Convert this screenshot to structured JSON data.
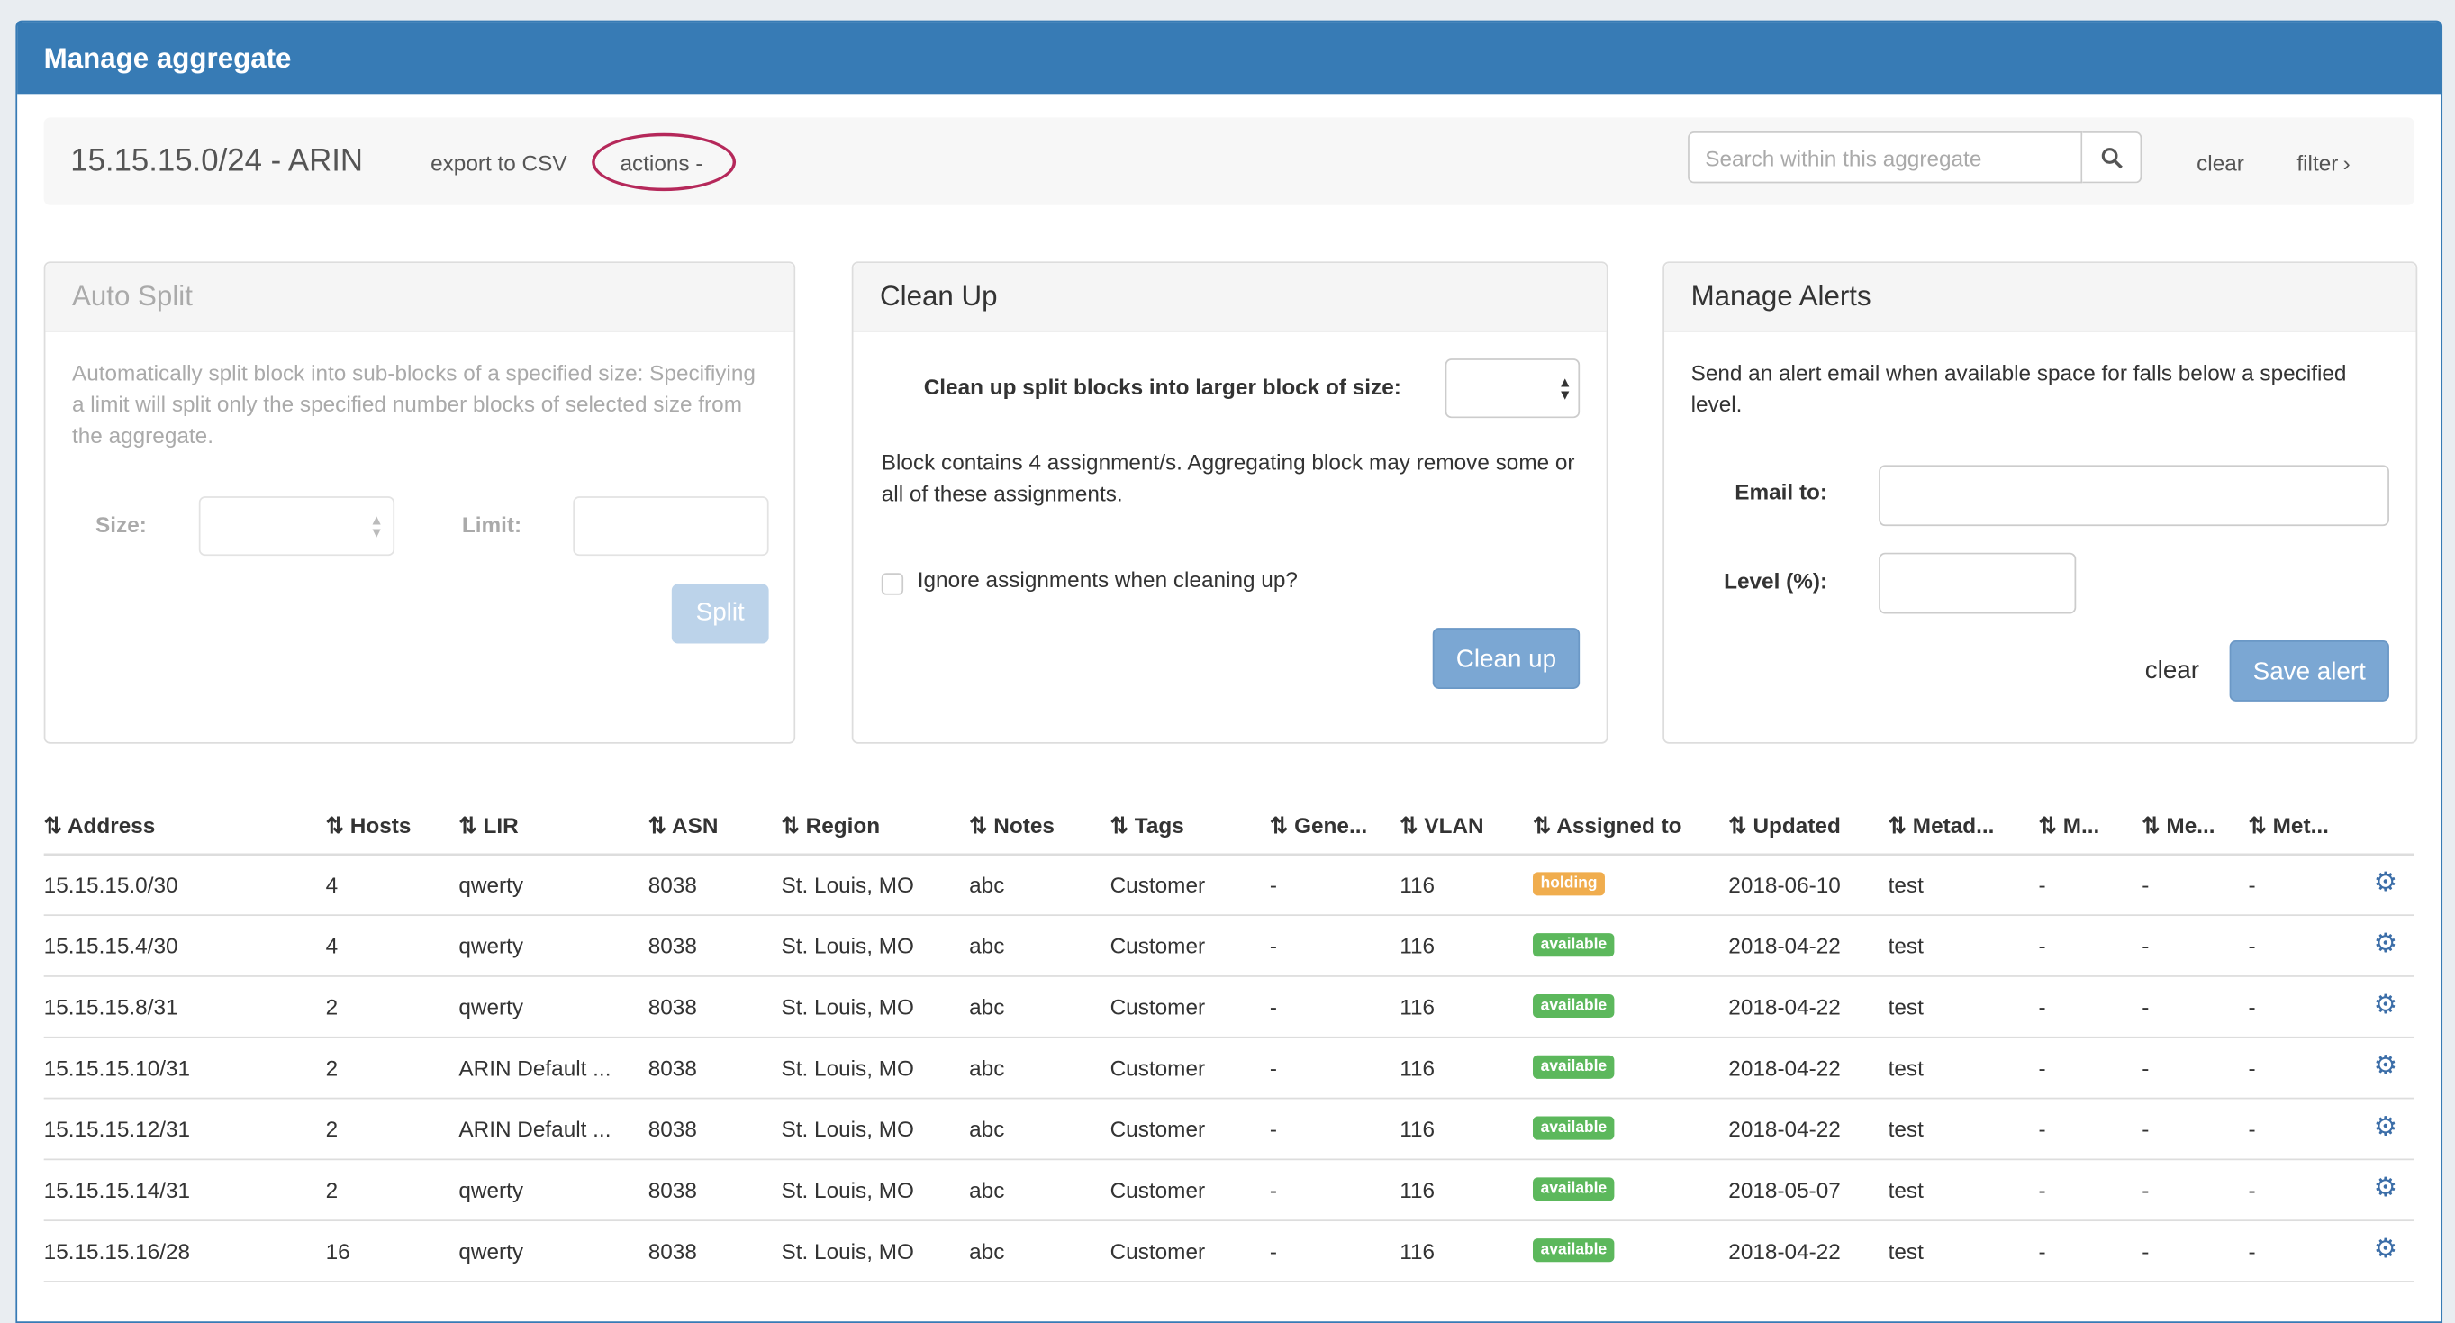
{
  "panel": {
    "title": "Manage aggregate"
  },
  "toolbar": {
    "aggregate": "15.15.15.0/24 - ARIN",
    "export": "export to CSV",
    "actions": "actions -",
    "search_placeholder": "Search within this aggregate",
    "clear": "clear",
    "filter": "filter"
  },
  "auto_split": {
    "title": "Auto Split",
    "description": "Automatically split block into sub-blocks of a specified size: Specifiying a limit will split only the specified number blocks of selected size from the aggregate.",
    "size_label": "Size:",
    "limit_label": "Limit:",
    "button": "Split"
  },
  "clean_up": {
    "title": "Clean Up",
    "size_label": "Clean up split blocks into larger block of size:",
    "note": "Block contains 4 assignment/s. Aggregating block may remove some or all of these assignments.",
    "checkbox_label": "Ignore assignments when cleaning up?",
    "checked": false,
    "button": "Clean up"
  },
  "alerts": {
    "title": "Manage Alerts",
    "description": "Send an alert email when available space for falls below a specified level.",
    "email_label": "Email to:",
    "level_label": "Level (%):",
    "clear": "clear",
    "button": "Save alert"
  },
  "colors": {
    "header": "#377bb5",
    "holding": "#f0ad4e",
    "available": "#5cb85c",
    "highlight": "#b5285a"
  },
  "table": {
    "columns": [
      "Address",
      "Hosts",
      "LIR",
      "ASN",
      "Region",
      "Notes",
      "Tags",
      "Gene...",
      "VLAN",
      "Assigned to",
      "Updated",
      "Metad...",
      "M...",
      "Me...",
      "Met..."
    ],
    "rows": [
      [
        "15.15.15.0/30",
        "4",
        "qwerty",
        "8038",
        "St. Louis, MO",
        "abc",
        "Customer",
        "-",
        "116",
        "holding",
        "2018-06-10",
        "test",
        "-",
        "-",
        "-"
      ],
      [
        "15.15.15.4/30",
        "4",
        "qwerty",
        "8038",
        "St. Louis, MO",
        "abc",
        "Customer",
        "-",
        "116",
        "available",
        "2018-04-22",
        "test",
        "-",
        "-",
        "-"
      ],
      [
        "15.15.15.8/31",
        "2",
        "qwerty",
        "8038",
        "St. Louis, MO",
        "abc",
        "Customer",
        "-",
        "116",
        "available",
        "2018-04-22",
        "test",
        "-",
        "-",
        "-"
      ],
      [
        "15.15.15.10/31",
        "2",
        "ARIN Default ...",
        "8038",
        "St. Louis, MO",
        "abc",
        "Customer",
        "-",
        "116",
        "available",
        "2018-04-22",
        "test",
        "-",
        "-",
        "-"
      ],
      [
        "15.15.15.12/31",
        "2",
        "ARIN Default ...",
        "8038",
        "St. Louis, MO",
        "abc",
        "Customer",
        "-",
        "116",
        "available",
        "2018-04-22",
        "test",
        "-",
        "-",
        "-"
      ],
      [
        "15.15.15.14/31",
        "2",
        "qwerty",
        "8038",
        "St. Louis, MO",
        "abc",
        "Customer",
        "-",
        "116",
        "available",
        "2018-05-07",
        "test",
        "-",
        "-",
        "-"
      ],
      [
        "15.15.15.16/28",
        "16",
        "qwerty",
        "8038",
        "St. Louis, MO",
        "abc",
        "Customer",
        "-",
        "116",
        "available",
        "2018-04-22",
        "test",
        "-",
        "-",
        "-"
      ]
    ]
  }
}
